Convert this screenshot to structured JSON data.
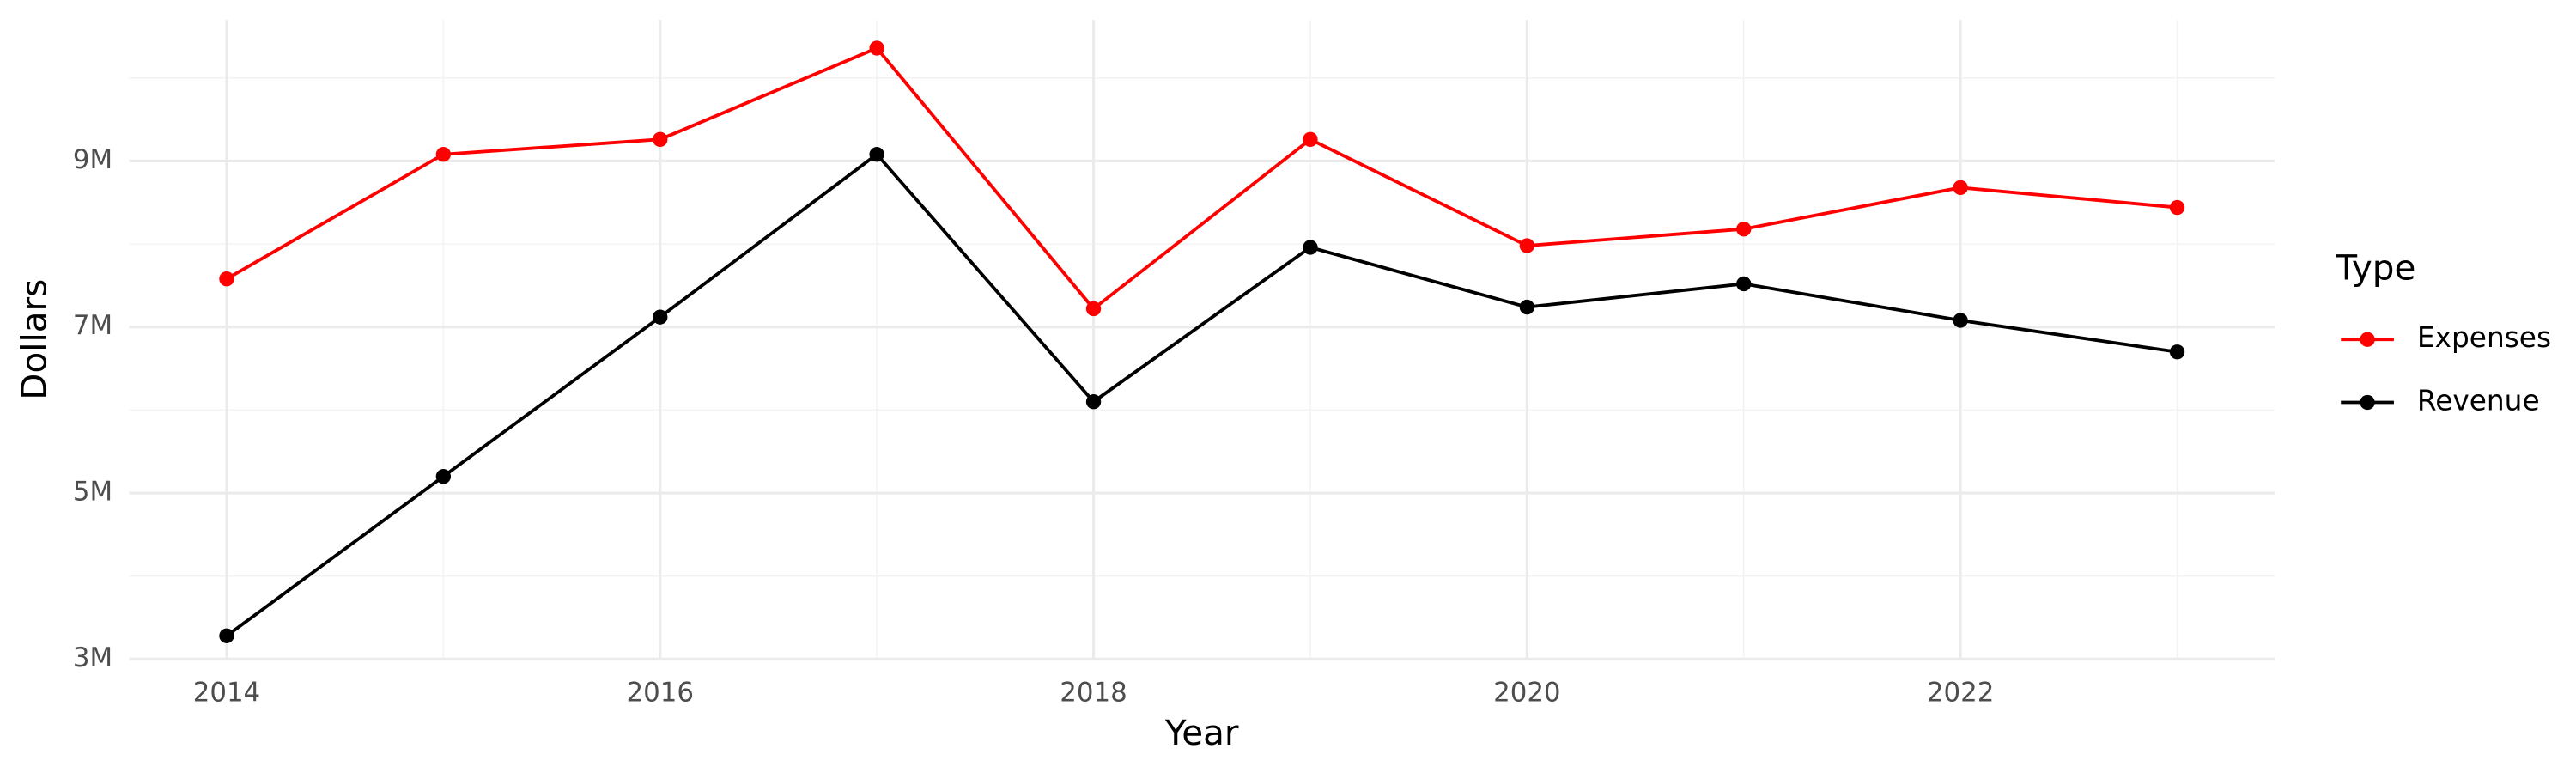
{
  "chart_data": {
    "type": "line",
    "x_label": "Year",
    "y_label": "Dollars",
    "legend_title": "Type",
    "x": [
      2014,
      2015,
      2016,
      2017,
      2018,
      2019,
      2020,
      2021,
      2022,
      2023
    ],
    "series": [
      {
        "name": "Expenses",
        "color": "#ff0000",
        "values": [
          7580000,
          9080000,
          9260000,
          10360000,
          7220000,
          9260000,
          7980000,
          8180000,
          8680000,
          8440000
        ]
      },
      {
        "name": "Revenue",
        "color": "#000000",
        "values": [
          3280000,
          5200000,
          7120000,
          9080000,
          6100000,
          7960000,
          7240000,
          7520000,
          7080000,
          6700000
        ]
      }
    ],
    "xlim": [
      2013.55,
      2023.45
    ],
    "xticks": [
      2014,
      2016,
      2018,
      2020,
      2022
    ],
    "x_minor_ticks": [
      2015,
      2017,
      2019,
      2021,
      2023
    ],
    "ylim": [
      3000000,
      10700000
    ],
    "yticks": [
      {
        "value": 3000000,
        "label": "3M"
      },
      {
        "value": 5000000,
        "label": "5M"
      },
      {
        "value": 7000000,
        "label": "7M"
      },
      {
        "value": 9000000,
        "label": "9M"
      }
    ],
    "y_minor_ticks": [
      4000000,
      6000000,
      8000000,
      10000000
    ],
    "grid": true,
    "legend": "right"
  }
}
